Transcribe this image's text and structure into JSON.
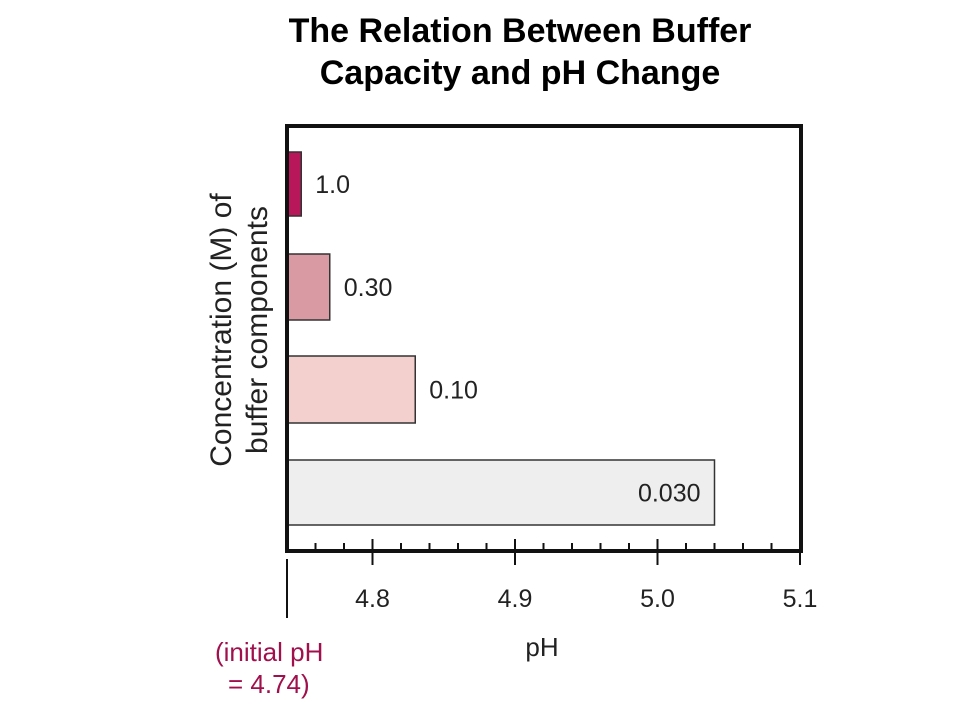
{
  "title": {
    "line1": "The Relation Between Buffer",
    "line2": "Capacity and pH Change"
  },
  "y_axis_title": {
    "line1": "Concentration (M) of",
    "line2": "buffer components"
  },
  "x_axis_title": "pH",
  "initial_ph_note": {
    "line1": "(initial pH",
    "line2": "= 4.74)"
  },
  "chart_data": {
    "type": "bar",
    "orientation": "horizontal",
    "title": "The Relation Between Buffer Capacity and pH Change",
    "xlabel": "pH",
    "ylabel": "Concentration (M) of buffer components",
    "baseline": 4.74,
    "xlim": [
      4.74,
      5.1
    ],
    "xticks": [
      4.8,
      4.9,
      5.0,
      5.1
    ],
    "xtick_labels": [
      "4.8",
      "4.9",
      "5.0",
      "5.1"
    ],
    "categories": [
      "1.0",
      "0.30",
      "0.10",
      "0.030"
    ],
    "values": [
      4.75,
      4.77,
      4.83,
      5.04
    ],
    "colors": [
      "#b8175a",
      "#d99aa4",
      "#f3cfcd",
      "#eeeeee"
    ],
    "grid": false
  }
}
